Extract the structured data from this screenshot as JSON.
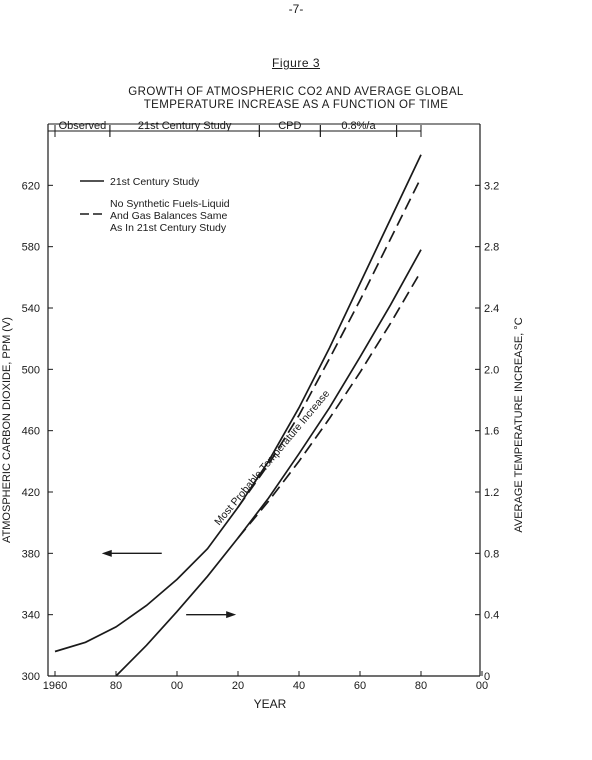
{
  "page": {
    "number": "-7-",
    "figure_label": "Figure 3"
  },
  "chart_data": {
    "type": "line",
    "title": "GROWTH OF ATMOSPHERIC CO2 AND AVERAGE GLOBAL",
    "title_line2": "TEMPERATURE INCREASE AS A FUNCTION OF TIME",
    "xlabel": "YEAR",
    "ylabel": "ATMOSPHERIC CARBON DIOXIDE, PPM (V)",
    "y2label": "AVERAGE TEMPERATURE INCREASE, °C",
    "xlim": [
      1960,
      2100
    ],
    "ylim": [
      300,
      660
    ],
    "y2lim": [
      0,
      3.6
    ],
    "x_ticks": [
      1960,
      1980,
      2000,
      2020,
      2040,
      2060,
      2080,
      2100
    ],
    "x_tick_labels": [
      "1960",
      "80",
      "00",
      "20",
      "40",
      "60",
      "80",
      "00"
    ],
    "y_ticks": [
      300,
      340,
      380,
      420,
      460,
      500,
      540,
      580,
      620
    ],
    "y2_ticks": [
      0,
      0.4,
      0.8,
      1.2,
      1.6,
      2.0,
      2.4,
      2.8,
      3.2
    ],
    "y2_tick_labels": [
      "0",
      "0.4",
      "0.8",
      "1.2",
      "1.6",
      "2.0",
      "2.4",
      "2.8",
      "3.2"
    ],
    "periods": [
      {
        "label": "Observed",
        "start": 1960,
        "end": 1978
      },
      {
        "label": "21st Century Study",
        "start": 1978,
        "end": 2027
      },
      {
        "label": "CPD",
        "start": 2027,
        "end": 2047
      },
      {
        "label": "0.8%/a",
        "start": 2047,
        "end": 2072
      },
      {
        "label": "",
        "start": 2072,
        "end": 2080
      }
    ],
    "legend": [
      {
        "label": "21st Century Study",
        "style": "solid"
      },
      {
        "label": "No Synthetic Fuels-Liquid",
        "style": "dashed"
      },
      {
        "label": "And Gas Balances Same",
        "style": "dashed-cont"
      },
      {
        "label": "As In 21st Century Study",
        "style": "dashed-cont"
      }
    ],
    "legend_position": "top-left",
    "band_label": "Most Probable Temperature Increase",
    "series": [
      {
        "axis": "left",
        "style": "solid",
        "x": [
          1960,
          1970,
          1980,
          1990,
          2000,
          2010,
          2020,
          2030,
          2040,
          2050,
          2060,
          2070,
          2080
        ],
        "values": [
          316,
          322,
          332,
          346,
          363,
          383,
          410,
          440,
          475,
          514,
          556,
          598,
          640
        ]
      },
      {
        "axis": "left",
        "style": "dashed",
        "x": [
          2020,
          2030,
          2040,
          2050,
          2060,
          2070,
          2080
        ],
        "values": [
          410,
          438,
          470,
          507,
          545,
          585,
          625
        ]
      },
      {
        "axis": "right",
        "style": "solid",
        "x": [
          1980,
          1990,
          2000,
          2010,
          2020,
          2030,
          2040,
          2050,
          2060,
          2070,
          2080
        ],
        "values": [
          0,
          0.2,
          0.42,
          0.65,
          0.9,
          1.16,
          1.45,
          1.75,
          2.08,
          2.42,
          2.78
        ]
      },
      {
        "axis": "right",
        "style": "dashed",
        "x": [
          2020,
          2030,
          2040,
          2050,
          2060,
          2070,
          2080
        ],
        "values": [
          0.9,
          1.14,
          1.4,
          1.68,
          1.98,
          2.3,
          2.64
        ]
      }
    ],
    "arrows": [
      {
        "direction": "left",
        "x": 1995,
        "y": 380
      },
      {
        "direction": "right",
        "x": 2003,
        "y": 340
      }
    ],
    "colors": {
      "ink": "#1a1a1a"
    }
  }
}
